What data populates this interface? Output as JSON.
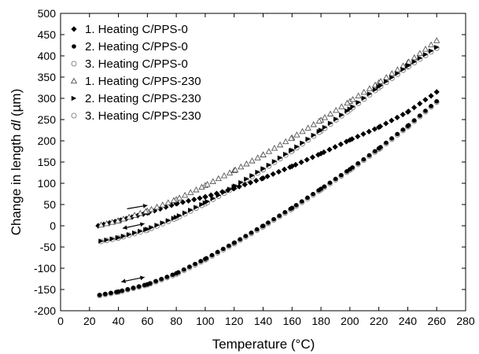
{
  "chart_data": {
    "type": "scatter",
    "title": "",
    "xlabel": "Temperature (°C)",
    "ylabel_prefix": "Change in length ",
    "ylabel_var": "dl",
    "ylabel_unit": " (µm)",
    "xlim": [
      0,
      280
    ],
    "ylim": [
      -200,
      500
    ],
    "x_ticks": [
      0,
      20,
      40,
      60,
      80,
      100,
      120,
      140,
      160,
      180,
      200,
      220,
      240,
      260,
      280
    ],
    "y_ticks": [
      -200,
      -150,
      -100,
      -50,
      0,
      50,
      100,
      150,
      200,
      250,
      300,
      350,
      400,
      450,
      500
    ],
    "grid": false,
    "legend_position": "top-left",
    "series": [
      {
        "name": "1. Heating C/PPS-0",
        "marker": "diamond-filled",
        "x": [
          26,
          40,
          60,
          80,
          100,
          120,
          140,
          160,
          180,
          200,
          220,
          240,
          260
        ],
        "y": [
          0,
          12,
          30,
          52,
          68,
          88,
          112,
          140,
          170,
          202,
          232,
          268,
          315
        ]
      },
      {
        "name": "2. Heating C/PPS-0",
        "marker": "circle-filled",
        "x": [
          27,
          40,
          60,
          80,
          100,
          120,
          140,
          160,
          180,
          200,
          220,
          240,
          260
        ],
        "y": [
          -163,
          -155,
          -138,
          -112,
          -78,
          -40,
          0,
          42,
          87,
          133,
          182,
          235,
          293
        ]
      },
      {
        "name": "3. Heating C/PPS-0",
        "marker": "circle-open",
        "x": [
          27,
          40,
          60,
          80,
          100,
          120,
          140,
          160,
          180,
          200,
          220,
          240,
          260
        ],
        "y": [
          -164,
          -156,
          -139,
          -114,
          -80,
          -42,
          -2,
          40,
          85,
          131,
          180,
          233,
          291
        ]
      },
      {
        "name": "1. Heating C/PPS-230",
        "marker": "triangle-up-open",
        "x": [
          28,
          40,
          60,
          80,
          100,
          120,
          140,
          160,
          180,
          200,
          220,
          240,
          260
        ],
        "y": [
          2,
          12,
          35,
          62,
          95,
          130,
          167,
          207,
          249,
          293,
          337,
          384,
          436
        ]
      },
      {
        "name": "2. Heating C/PPS-230",
        "marker": "triangle-right-filled",
        "x": [
          28,
          40,
          60,
          80,
          100,
          120,
          140,
          160,
          180,
          200,
          220,
          240,
          260
        ],
        "y": [
          -36,
          -28,
          -8,
          20,
          54,
          92,
          134,
          178,
          225,
          275,
          327,
          376,
          420
        ]
      },
      {
        "name": "3. Heating C/PPS-230",
        "marker": "circle-open",
        "x": [
          28,
          40,
          60,
          80,
          100,
          120,
          140,
          160,
          180,
          200,
          220,
          240,
          260
        ],
        "y": [
          -37,
          -29,
          -10,
          18,
          52,
          90,
          132,
          176,
          223,
          273,
          325,
          374,
          418
        ]
      }
    ]
  }
}
